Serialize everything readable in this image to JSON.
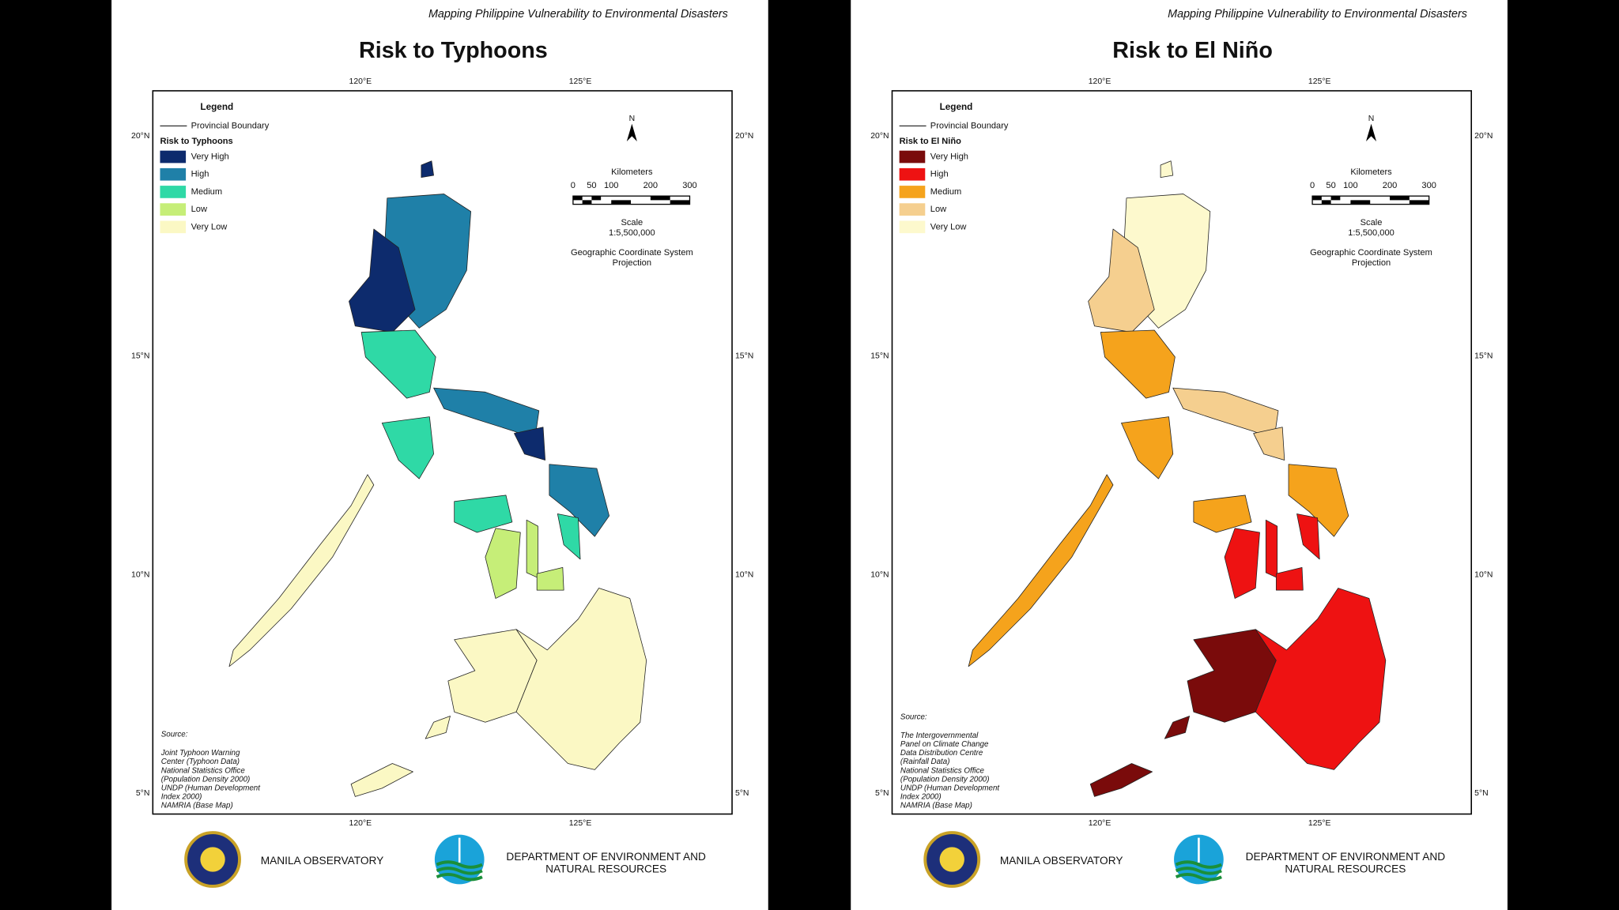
{
  "panels": [
    {
      "header": "Mapping Philippine Vulnerability to Environmental Disasters",
      "title": "Risk to Typhoons",
      "lon_labels": [
        "120°E",
        "125°E"
      ],
      "lat_labels": [
        "20°N",
        "15°N",
        "10°N",
        "5°N"
      ],
      "legend": {
        "title": "Legend",
        "boundary": "Provincial Boundary",
        "subtitle": "Risk to Typhoons",
        "classes": [
          {
            "label": "Very High",
            "color": "#0d2b6d"
          },
          {
            "label": "High",
            "color": "#1f80a8"
          },
          {
            "label": "Medium",
            "color": "#2fd9a6"
          },
          {
            "label": "Low",
            "color": "#c6ee78"
          },
          {
            "label": "Very Low",
            "color": "#fbf8c4"
          }
        ]
      },
      "north": "N",
      "scale": {
        "title": "Kilometers",
        "ticks": [
          "0",
          "50",
          "100",
          "200",
          "300"
        ],
        "label": "Scale",
        "ratio": "1:5,500,000",
        "projection": [
          "Geographic Coordinate System",
          "Projection"
        ]
      },
      "source": {
        "heading": "Source:",
        "lines": [
          "Joint Typhoon Warning",
          "Center (Typhoon Data)",
          "National Statistics Office",
          "(Population Density 2000)",
          "UNDP (Human Development",
          "Index 2000)",
          "NAMRIA (Base Map)"
        ]
      },
      "logos": {
        "observatory": "MANILA OBSERVATORY",
        "denr": [
          "DEPARTMENT OF ENVIRONMENT AND",
          "NATURAL RESOURCES"
        ]
      }
    },
    {
      "header": "Mapping Philippine Vulnerability to Environmental Disasters",
      "title": "Risk to El Niño",
      "lon_labels": [
        "120°E",
        "125°E"
      ],
      "lat_labels": [
        "20°N",
        "15°N",
        "10°N",
        "5°N"
      ],
      "legend": {
        "title": "Legend",
        "boundary": "Provincial Boundary",
        "subtitle": "Risk to El Niño",
        "classes": [
          {
            "label": "Very High",
            "color": "#7a0b0b"
          },
          {
            "label": "High",
            "color": "#ee1212"
          },
          {
            "label": "Medium",
            "color": "#f5a31c"
          },
          {
            "label": "Low",
            "color": "#f5cf8f"
          },
          {
            "label": "Very Low",
            "color": "#fdf9cd"
          }
        ]
      },
      "north": "N",
      "scale": {
        "title": "Kilometers",
        "ticks": [
          "0",
          "50",
          "100",
          "200",
          "300"
        ],
        "label": "Scale",
        "ratio": "1:5,500,000",
        "projection": [
          "Geographic Coordinate System",
          "Projection"
        ]
      },
      "source": {
        "heading": "Source:",
        "lines": [
          "The Intergovernmental",
          "Panel on Climate Change",
          "Data Distribution Centre",
          "(Rainfall Data)",
          "National Statistics Office",
          "(Population Density 2000)",
          "UNDP (Human Development",
          "Index 2000)",
          "NAMRIA (Base Map)"
        ]
      },
      "logos": {
        "observatory": "MANILA OBSERVATORY",
        "denr": [
          "DEPARTMENT OF ENVIRONMENT AND",
          "NATURAL RESOURCES"
        ]
      }
    }
  ]
}
